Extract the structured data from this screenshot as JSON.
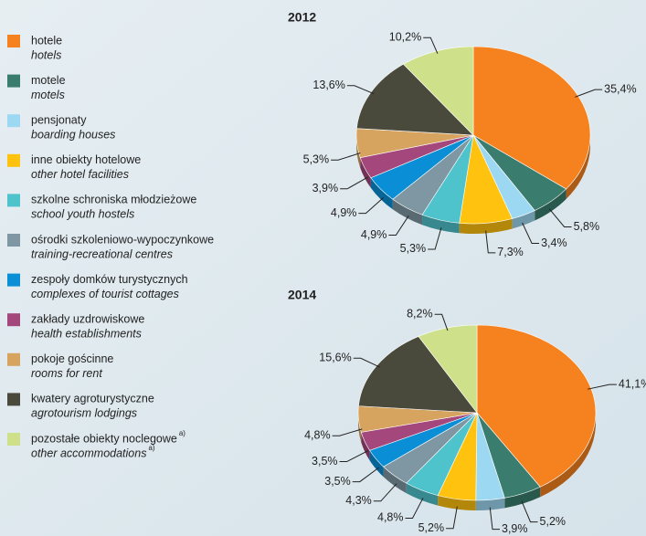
{
  "legend": [
    {
      "label": "hotele",
      "label_en": "hotels",
      "color": "#f5821f"
    },
    {
      "label": "motele",
      "label_en": "motels",
      "color": "#3a7d6e"
    },
    {
      "label": "pensjonaty",
      "label_en": "boarding houses",
      "color": "#9dd8f2"
    },
    {
      "label": "inne obiekty hotelowe",
      "label_en": "other hotel facilities",
      "color": "#ffc20e"
    },
    {
      "label": "szkolne schroniska młodzieżowe",
      "label_en": "school youth hostels",
      "color": "#4fc3cc"
    },
    {
      "label": "ośrodki szkoleniowo-wypoczynkowe",
      "label_en": "training-recreational centres",
      "color": "#7f97a3"
    },
    {
      "label": "zespoły domków turystycznych",
      "label_en": "complexes of tourist cottages",
      "color": "#0a8fd6"
    },
    {
      "label": "zakłady uzdrowiskowe",
      "label_en": "health establishments",
      "color": "#a3477c"
    },
    {
      "label": "pokoje gościnne",
      "label_en": "rooms for rent",
      "color": "#d6a45f"
    },
    {
      "label": "kwatery agroturystyczne",
      "label_en": "agrotourism lodgings",
      "color": "#4a4a3c"
    },
    {
      "label": "pozostałe obiekty noclegowe",
      "label_en": "other accommodations",
      "color": "#cfe08a"
    }
  ],
  "legend_note": "a)",
  "chart_data": [
    {
      "type": "pie",
      "title": "2012",
      "values": [
        35.4,
        5.8,
        3.4,
        7.3,
        5.3,
        4.9,
        4.9,
        3.9,
        5.3,
        13.6,
        10.2
      ],
      "value_labels": [
        "35,4%",
        "5,8%",
        "3,4%",
        "7,3%",
        "5,3%",
        "4,9%",
        "4,9%",
        "3,9%",
        "5,3%",
        "13,6%",
        "10,2%"
      ]
    },
    {
      "type": "pie",
      "title": "2014",
      "values": [
        41.1,
        5.2,
        3.9,
        5.2,
        4.8,
        4.3,
        3.5,
        3.5,
        4.8,
        15.6,
        8.2
      ],
      "value_labels": [
        "41,1%",
        "5,2%",
        "3,9%",
        "5,2%",
        "4,8%",
        "4,3%",
        "3,5%",
        "3,5%",
        "4,8%",
        "15,6%",
        "8,2%"
      ]
    }
  ]
}
